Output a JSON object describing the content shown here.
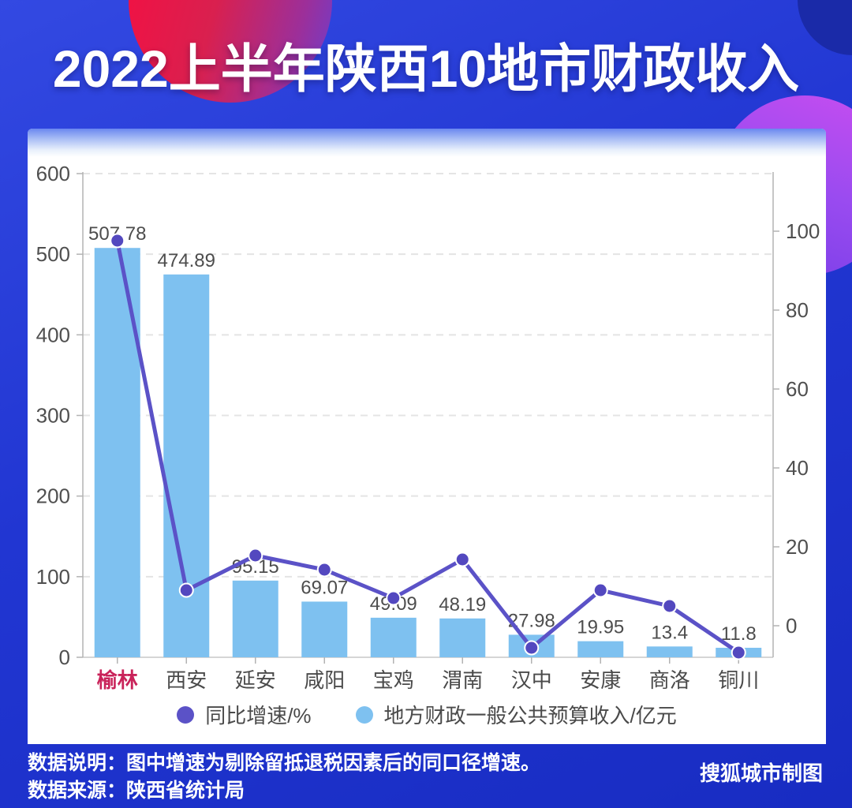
{
  "page": {
    "title": "2022上半年陕西10地市财政收入",
    "footer": {
      "note_label": "数据说明：",
      "note_text": "图中增速为剔除留抵退税因素后的同口径增速。",
      "source_label": "数据来源：",
      "source_text": "陕西省统计局",
      "credit": "搜狐城市制图"
    }
  },
  "colors": {
    "background_blue": "#2136d2",
    "card": "#ffffff",
    "bar": "#7ec1f0",
    "line": "#5b52c7",
    "marker": "#5348bf",
    "axis_text": "#4f4f4f",
    "gridline": "#e4e4e4",
    "axis_line": "#b3b3b3",
    "highlight": "#c9235a",
    "deco_red": "#ee1345",
    "deco_purple": "#9a4bf0"
  },
  "chart_data": {
    "type": "bar+line dual-axis combo",
    "categories": [
      "榆林",
      "西安",
      "延安",
      "咸阳",
      "宝鸡",
      "渭南",
      "汉中",
      "安康",
      "商洛",
      "铜川"
    ],
    "highlight_category": "榆林",
    "series": [
      {
        "name": "同比增速/%",
        "type": "line",
        "axis": "right",
        "color": "#5b52c7",
        "values": [
          97.6,
          9.0,
          17.8,
          14.2,
          7.0,
          16.8,
          -5.6,
          9.0,
          5.0,
          -6.8
        ]
      },
      {
        "name": "地方财政一般公共预算收入/亿元",
        "type": "bar",
        "axis": "left",
        "color": "#7ec1f0",
        "values": [
          507.78,
          474.89,
          95.15,
          69.07,
          49.09,
          48.19,
          27.98,
          19.95,
          13.4,
          11.8
        ],
        "labels": [
          "507.78",
          "474.89",
          "95.15",
          "69.07",
          "49.09",
          "48.19",
          "27.98",
          "19.95",
          "13.4",
          "11.8"
        ]
      }
    ],
    "left_axis": {
      "min": 0,
      "max": 600,
      "ticks": [
        0,
        100,
        200,
        300,
        400,
        500,
        600
      ]
    },
    "right_axis": {
      "ticks": [
        0,
        20,
        40,
        60,
        80,
        100
      ],
      "approx_min": -8,
      "approx_max": 114
    },
    "legend_position": "bottom",
    "grid": "dashed horizontal gridlines"
  }
}
